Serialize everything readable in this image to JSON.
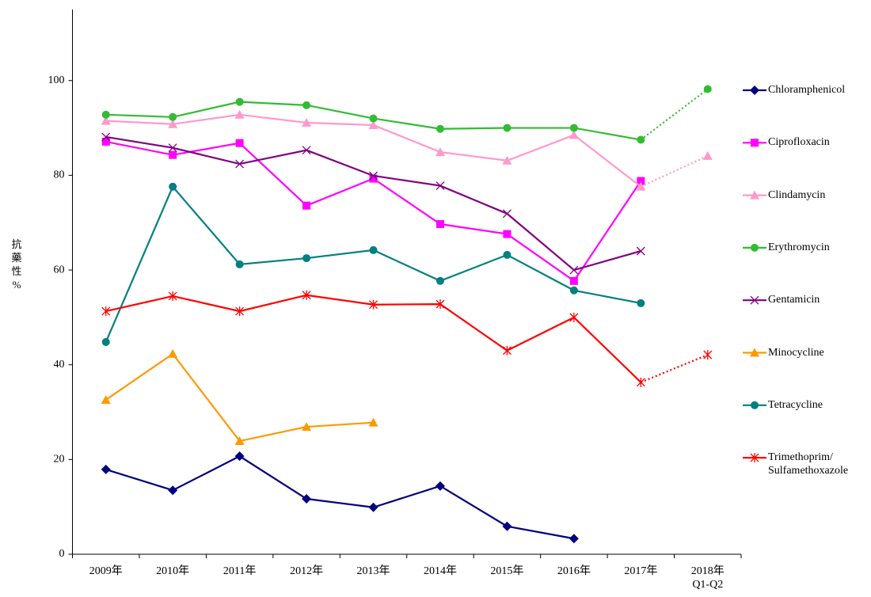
{
  "chart_data": {
    "type": "line",
    "y_label": "抗\n藥\n性\n%",
    "categories": [
      "2009年",
      "2010年",
      "2011年",
      "2012年",
      "2013年",
      "2014年",
      "2015年",
      "2016年",
      "2017年",
      "2018年\nQ1-Q2"
    ],
    "ylim": [
      0,
      115
    ],
    "yticks": [
      0,
      20,
      40,
      60,
      80,
      100
    ],
    "dotted_last_segment": true,
    "series": [
      {
        "name": "Chloramphenicol",
        "color": "#000080",
        "marker": "diamond",
        "values": [
          17.9,
          13.5,
          20.7,
          11.7,
          9.9,
          14.4,
          5.9,
          3.3,
          null,
          null
        ]
      },
      {
        "name": "Ciprofloxacin",
        "color": "#ff00ff",
        "marker": "square",
        "values": [
          87.1,
          84.3,
          86.8,
          73.6,
          79.3,
          69.7,
          67.6,
          57.7,
          78.8,
          null
        ]
      },
      {
        "name": "Clindamycin",
        "color": "#ff99cc",
        "marker": "triangle",
        "values": [
          91.5,
          90.8,
          92.8,
          91.1,
          90.6,
          84.9,
          83.1,
          88.5,
          77.6,
          84.1
        ]
      },
      {
        "name": "Erythromycin",
        "color": "#33bb33",
        "marker": "circle",
        "values": [
          92.8,
          92.3,
          95.5,
          94.8,
          92.0,
          89.8,
          90.0,
          90.0,
          87.5,
          98.2
        ]
      },
      {
        "name": "Gentamicin",
        "color": "#800080",
        "marker": "x",
        "values": [
          88.1,
          85.8,
          82.4,
          85.3,
          79.9,
          77.8,
          71.9,
          60.0,
          64.0,
          null
        ]
      },
      {
        "name": "Minocycline",
        "color": "#ff9900",
        "marker": "triangle",
        "values": [
          32.6,
          42.3,
          23.9,
          26.9,
          27.8,
          null,
          null,
          null,
          null,
          null
        ]
      },
      {
        "name": "Tetracycline",
        "color": "#008080",
        "marker": "circle",
        "values": [
          44.8,
          77.6,
          61.2,
          62.5,
          64.2,
          57.7,
          63.2,
          55.7,
          53.0,
          null
        ]
      },
      {
        "name": "Trimethoprim/\nSulfamethoxazole",
        "color": "#ff0000",
        "marker": "star",
        "values": [
          51.3,
          54.5,
          51.3,
          54.7,
          52.7,
          52.8,
          43.0,
          50.0,
          36.3,
          42.1
        ]
      }
    ]
  }
}
